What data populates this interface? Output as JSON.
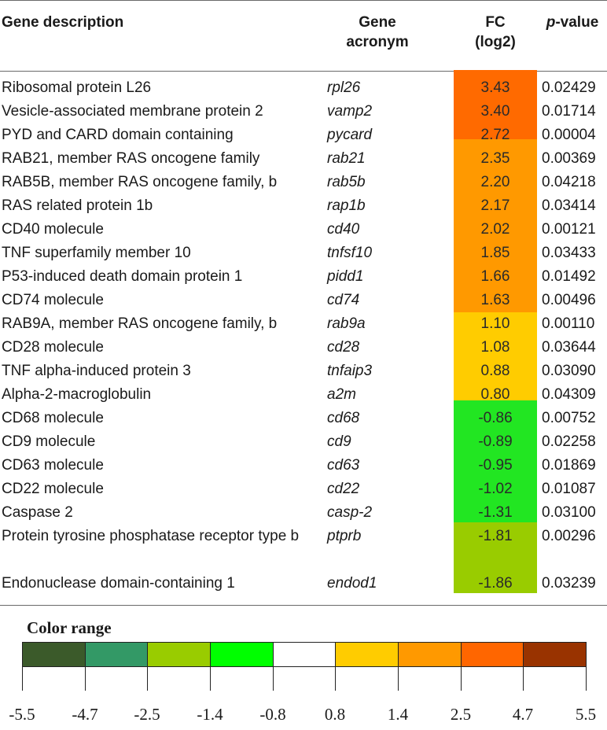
{
  "headers": {
    "description": "Gene description",
    "acronym_line1": "Gene",
    "acronym_line2": "acronym",
    "fc_line1": "FC",
    "fc_line2": "(log2)",
    "pvalue_italic": "p",
    "pvalue_rest": "-value"
  },
  "rows": [
    {
      "description": "Ribosomal protein L26",
      "acronym": "rpl26",
      "fc": "3.43",
      "p": "0.02429"
    },
    {
      "description": "Vesicle-associated membrane protein 2",
      "acronym": "vamp2",
      "fc": "3.40",
      "p": "0.01714"
    },
    {
      "description": "PYD and CARD domain containing",
      "acronym": "pycard",
      "fc": "2.72",
      "p": "0.00004"
    },
    {
      "description": "RAB21, member RAS oncogene family",
      "acronym": "rab21",
      "fc": "2.35",
      "p": "0.00369"
    },
    {
      "description": "RAB5B, member RAS oncogene family, b",
      "acronym": "rab5b",
      "fc": "2.20",
      "p": "0.04218"
    },
    {
      "description": "RAS related protein 1b",
      "acronym": "rap1b",
      "fc": "2.17",
      "p": "0.03414"
    },
    {
      "description": "CD40 molecule",
      "acronym": "cd40",
      "fc": "2.02",
      "p": "0.00121"
    },
    {
      "description": "TNF superfamily member 10",
      "acronym": "tnfsf10",
      "fc": "1.85",
      "p": "0.03433"
    },
    {
      "description": "P53-induced death domain protein 1",
      "acronym": "pidd1",
      "fc": "1.66",
      "p": "0.01492"
    },
    {
      "description": "CD74 molecule",
      "acronym": "cd74",
      "fc": "1.63",
      "p": "0.00496"
    },
    {
      "description": "RAB9A, member RAS oncogene family, b",
      "acronym": "rab9a",
      "fc": "1.10",
      "p": "0.00110"
    },
    {
      "description": "CD28 molecule",
      "acronym": "cd28",
      "fc": "1.08",
      "p": "0.03644"
    },
    {
      "description": "TNF alpha-induced protein 3",
      "acronym": "tnfaip3",
      "fc": "0.88",
      "p": "0.03090"
    },
    {
      "description": "Alpha-2-macroglobulin",
      "acronym": "a2m",
      "fc": "0.80",
      "p": "0.04309"
    },
    {
      "description": "CD68 molecule",
      "acronym": "cd68",
      "fc": "-0.86",
      "p": "0.00752"
    },
    {
      "description": "CD9 molecule",
      "acronym": "cd9",
      "fc": "-0.89",
      "p": "0.02258"
    },
    {
      "description": "CD63 molecule",
      "acronym": "cd63",
      "fc": "-0.95",
      "p": "0.01869"
    },
    {
      "description": "CD22 molecule",
      "acronym": "cd22",
      "fc": "-1.02",
      "p": "0.01087"
    },
    {
      "description": "Caspase 2",
      "acronym": "casp-2",
      "fc": "-1.31",
      "p": "0.03100"
    },
    {
      "description": "Protein tyrosine phosphatase receptor type b",
      "acronym": "ptprb",
      "fc": "-1.81",
      "p": "0.00296"
    },
    {
      "description": "Endonuclease domain-containing 1",
      "acronym": "endod1",
      "fc": "-1.86",
      "p": "0.03239"
    }
  ],
  "colors": {
    "orange_red": "#ff6a00",
    "orange": "#ff9900",
    "yellow": "#ffcc00",
    "green": "#22e622",
    "yellow_green": "#99cc00"
  },
  "legend": {
    "title": "Color range",
    "swatches": [
      "#3b5a2a",
      "#339966",
      "#99cc00",
      "#00ff00",
      "#ffffff",
      "#ffcc00",
      "#ff9900",
      "#ff6600",
      "#993300"
    ],
    "ticks": [
      "-5.5",
      "-4.7",
      "-2.5",
      "-1.4",
      "-0.8",
      "0.8",
      "1.4",
      "2.5",
      "4.7",
      "5.5"
    ]
  }
}
